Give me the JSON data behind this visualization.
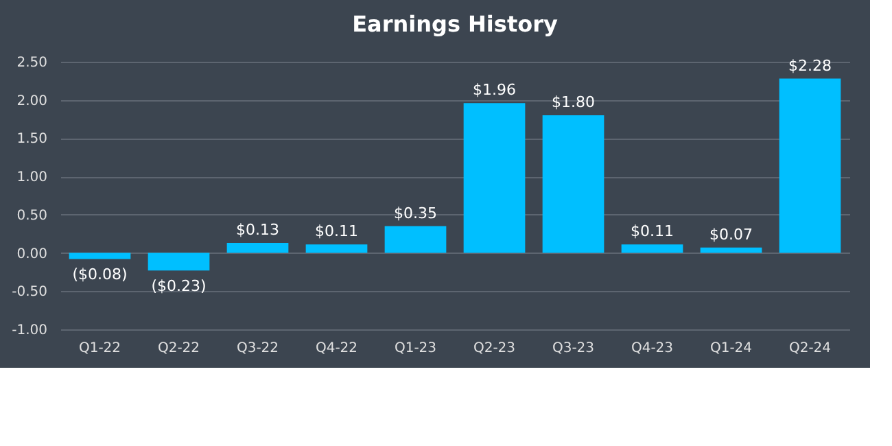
{
  "chart_data": {
    "type": "bar",
    "title": "Earnings History",
    "categories": [
      "Q1-22",
      "Q2-22",
      "Q3-22",
      "Q4-22",
      "Q1-23",
      "Q2-23",
      "Q3-23",
      "Q4-23",
      "Q1-24",
      "Q2-24"
    ],
    "values": [
      -0.08,
      -0.23,
      0.13,
      0.11,
      0.35,
      1.96,
      1.8,
      0.11,
      0.07,
      2.28
    ],
    "value_labels": [
      "($0.08)",
      "($0.23)",
      "$0.13",
      "$0.11",
      "$0.35",
      "$1.96",
      "$1.80",
      "$0.11",
      "$0.07",
      "$2.28"
    ],
    "color": "#00bfff",
    "ylim": [
      -1,
      2.5
    ],
    "yticks": [
      {
        "value": -1,
        "label": "-1.00"
      },
      {
        "value": -0.5,
        "label": "-0.50"
      },
      {
        "value": 0,
        "label": "0.00"
      },
      {
        "value": 0.5,
        "label": "0.50"
      },
      {
        "value": 1,
        "label": "1.00"
      },
      {
        "value": 1.5,
        "label": "1.50"
      },
      {
        "value": 2,
        "label": "2.00"
      },
      {
        "value": 2.5,
        "label": "2.50"
      }
    ],
    "grid": "y"
  }
}
